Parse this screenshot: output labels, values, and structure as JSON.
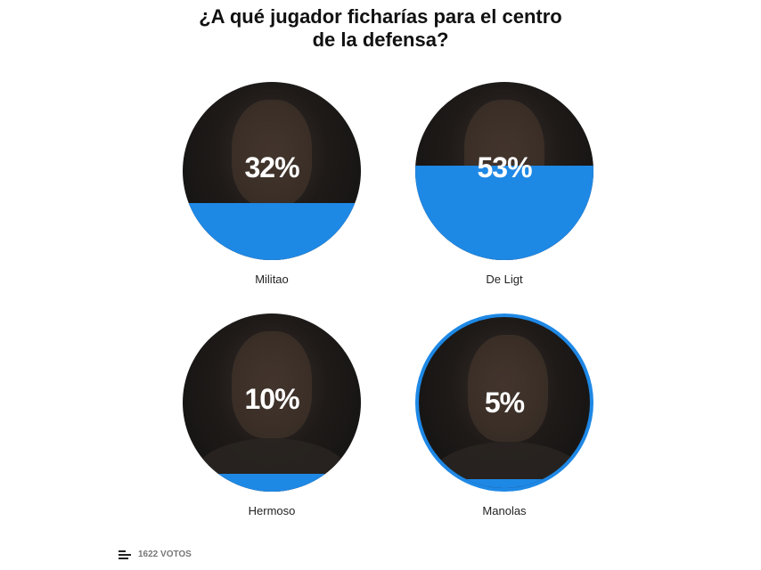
{
  "title": "¿A qué jugador ficharías para el centro de la defensa?",
  "accent_color": "#1e88e5",
  "options": [
    {
      "name": "Militao",
      "percent_label": "32%",
      "percent": 32,
      "selected": false
    },
    {
      "name": "De Ligt",
      "percent_label": "53%",
      "percent": 53,
      "selected": false
    },
    {
      "name": "Hermoso",
      "percent_label": "10%",
      "percent": 10,
      "selected": false
    },
    {
      "name": "Manolas",
      "percent_label": "5%",
      "percent": 5,
      "selected": true
    }
  ],
  "footer": {
    "icon": "bar-chart-icon",
    "votes_label": "1622 VOTOS"
  }
}
